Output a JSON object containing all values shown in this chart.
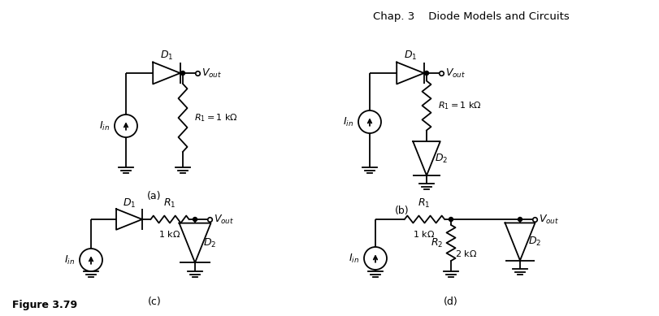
{
  "title": "Chap. 3    Diode Models and Circuits",
  "figure_label": "Figure 3.79",
  "background_color": "#ffffff",
  "line_color": "#000000",
  "subfig_labels": [
    "(a)",
    "(b)",
    "(c)",
    "(d)"
  ]
}
